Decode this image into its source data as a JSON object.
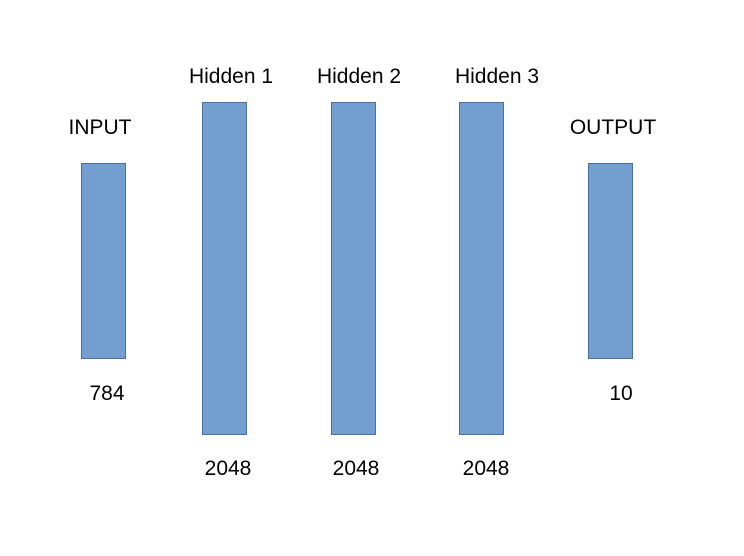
{
  "diagram": {
    "bar_color": "#729fcf",
    "layers": [
      {
        "title": "INPUT",
        "size": "784"
      },
      {
        "title": "Hidden 1",
        "size": "2048"
      },
      {
        "title": "Hidden 2",
        "size": "2048"
      },
      {
        "title": "Hidden 3",
        "size": "2048"
      },
      {
        "title": "OUTPUT",
        "size": "10"
      }
    ]
  }
}
